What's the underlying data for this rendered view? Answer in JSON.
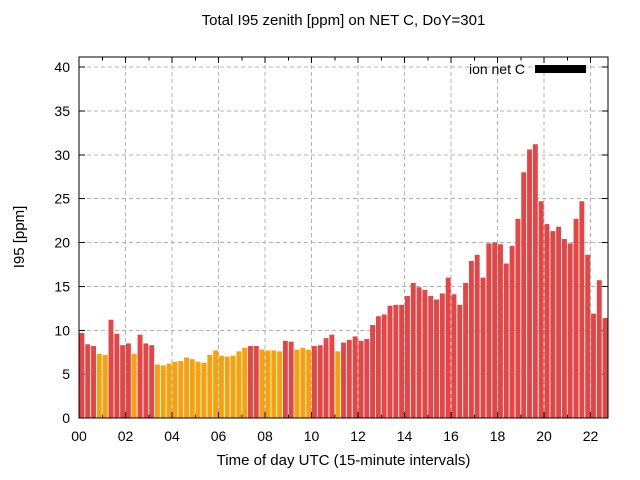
{
  "figure": {
    "title": "Total I95 zenith [ppm] on NET C, DoY=301",
    "legend": {
      "label": "ion net C",
      "swatch_color": "#000000"
    },
    "x_axis": {
      "label": "Time of day UTC (15-minute intervals)",
      "tick_labels": [
        "00",
        "02",
        "04",
        "06",
        "08",
        "10",
        "12",
        "14",
        "16",
        "18",
        "20",
        "22"
      ],
      "tick_hours": [
        0,
        2,
        4,
        6,
        8,
        10,
        12,
        14,
        16,
        18,
        20,
        22
      ],
      "minor_tick_every_hours": 1,
      "range_hours": [
        0,
        22.75
      ]
    },
    "y_axis": {
      "label": "I95 [ppm]",
      "tick_labels": [
        "0",
        "5",
        "10",
        "15",
        "20",
        "25",
        "30",
        "35",
        "40"
      ],
      "ticks": [
        0,
        5,
        10,
        15,
        20,
        25,
        30,
        35,
        40
      ],
      "range": [
        0,
        41.1
      ]
    }
  },
  "colors": {
    "red_bar": "#e64545",
    "orange_bar": "#f9a10d",
    "grid": "#b3b3b3",
    "border": "#000000",
    "text": "#000000",
    "background": "#ffffff"
  },
  "chart_data": {
    "type": "bar",
    "title": "Total I95 zenith [ppm] on NET C, DoY=301",
    "xlabel": "Time of day UTC (15-minute intervals)",
    "ylabel": "I95 [ppm]",
    "interval_minutes": 15,
    "ylim": [
      0,
      40
    ],
    "grid": true,
    "legend_position": "top-right",
    "legend_entries": [
      "ion net C"
    ],
    "times": [
      "00:00",
      "00:15",
      "00:30",
      "00:45",
      "01:00",
      "01:15",
      "01:30",
      "01:45",
      "02:00",
      "02:15",
      "02:30",
      "02:45",
      "03:00",
      "03:15",
      "03:30",
      "03:45",
      "04:00",
      "04:15",
      "04:30",
      "04:45",
      "05:00",
      "05:15",
      "05:30",
      "05:45",
      "06:00",
      "06:15",
      "06:30",
      "06:45",
      "07:00",
      "07:15",
      "07:30",
      "07:45",
      "08:00",
      "08:15",
      "08:30",
      "08:45",
      "09:00",
      "09:15",
      "09:30",
      "09:45",
      "10:00",
      "10:15",
      "10:30",
      "10:45",
      "11:00",
      "11:15",
      "11:30",
      "11:45",
      "12:00",
      "12:15",
      "12:30",
      "12:45",
      "13:00",
      "13:15",
      "13:30",
      "13:45",
      "14:00",
      "14:15",
      "14:30",
      "14:45",
      "15:00",
      "15:15",
      "15:30",
      "15:45",
      "16:00",
      "16:15",
      "16:30",
      "16:45",
      "17:00",
      "17:15",
      "17:30",
      "17:45",
      "18:00",
      "18:15",
      "18:30",
      "18:45",
      "19:00",
      "19:15",
      "19:30",
      "19:45",
      "20:00",
      "20:15",
      "20:30",
      "20:45",
      "21:00",
      "21:15",
      "21:30",
      "21:45",
      "22:00",
      "22:15",
      "22:30"
    ],
    "values": [
      9.7,
      8.4,
      8.2,
      7.3,
      7.2,
      11.2,
      9.6,
      8.3,
      8.5,
      7.3,
      9.5,
      8.5,
      8.3,
      6.1,
      6.0,
      6.2,
      6.4,
      6.5,
      6.9,
      6.7,
      6.4,
      6.3,
      7.2,
      7.7,
      7.1,
      7.0,
      7.1,
      7.6,
      8.0,
      8.2,
      8.2,
      7.8,
      7.7,
      7.7,
      7.6,
      8.8,
      8.7,
      7.8,
      8.0,
      7.8,
      8.2,
      8.3,
      9.1,
      9.5,
      7.6,
      8.6,
      8.9,
      9.3,
      8.8,
      9.0,
      10.6,
      11.6,
      11.8,
      12.8,
      12.9,
      12.9,
      13.9,
      15.4,
      14.9,
      14.6,
      13.9,
      13.5,
      14.2,
      16.0,
      14.1,
      12.9,
      15.4,
      17.9,
      18.6,
      16.0,
      19.9,
      20.0,
      19.8,
      17.6,
      19.6,
      22.7,
      28.0,
      30.6,
      31.2,
      24.7,
      22.1,
      21.3,
      21.8,
      20.4,
      19.9,
      22.7,
      24.7,
      18.6,
      11.9,
      15.7,
      11.4
    ],
    "bar_colors": [
      "red",
      "red",
      "red",
      "orange",
      "orange",
      "red",
      "red",
      "red",
      "red",
      "orange",
      "red",
      "red",
      "red",
      "orange",
      "orange",
      "orange",
      "orange",
      "orange",
      "orange",
      "orange",
      "orange",
      "orange",
      "orange",
      "orange",
      "orange",
      "orange",
      "orange",
      "orange",
      "orange",
      "red",
      "red",
      "orange",
      "orange",
      "orange",
      "orange",
      "red",
      "red",
      "orange",
      "orange",
      "orange",
      "red",
      "red",
      "red",
      "red",
      "orange",
      "red",
      "red",
      "red",
      "red",
      "red",
      "red",
      "red",
      "red",
      "red",
      "red",
      "red",
      "red",
      "red",
      "red",
      "red",
      "red",
      "red",
      "red",
      "red",
      "red",
      "red",
      "red",
      "red",
      "red",
      "red",
      "red",
      "red",
      "red",
      "red",
      "red",
      "red",
      "red",
      "red",
      "red",
      "red",
      "red",
      "red",
      "red",
      "red",
      "red",
      "red",
      "red",
      "red",
      "red",
      "red",
      "red"
    ]
  }
}
